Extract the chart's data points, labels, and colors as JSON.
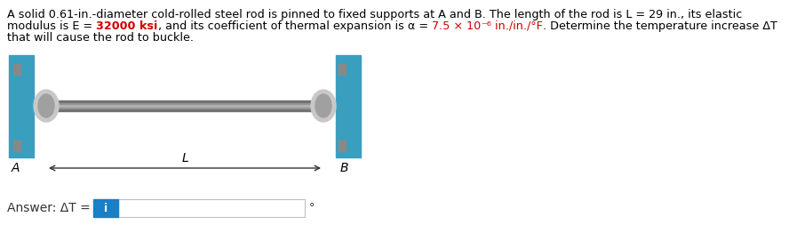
{
  "title_line1": "A solid 0.61-in.-diameter cold-rolled steel rod is pinned to fixed supports at A and B. The length of the rod is L = 29 in., its elastic",
  "title_line2": "modulus is E = 32000 ksi, and its coefficient of thermal expansion is α = 7.5 × 10⁻⁶ in./in./°F. Determine the temperature increase ΔT",
  "title_line3": "that will cause the rod to buckle.",
  "answer_label": "Answer: ΔT = ",
  "degree_symbol": "°",
  "bg_color": "#ffffff",
  "text_color": "#000000",
  "highlight_colors": {
    "E_val": "#cc0000",
    "alpha_val": "#cc0000"
  },
  "wall_color": "#3a9fbf",
  "rod_color_top": "#888888",
  "rod_color_bottom": "#444444",
  "pin_color": "#b0b0b0",
  "input_box_color": "#1a7fc4",
  "input_box_text": "i",
  "label_A": "A",
  "label_B": "B",
  "label_L": "L",
  "fig_width": 8.88,
  "fig_height": 2.62,
  "dpi": 100
}
